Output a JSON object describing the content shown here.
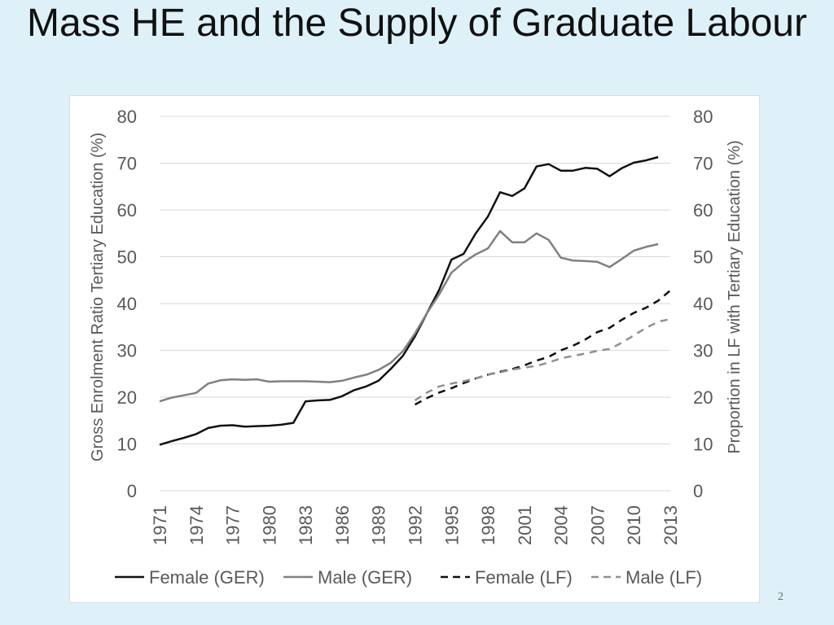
{
  "slide": {
    "title": "Mass HE and the Supply of Graduate Labour",
    "page_number": "2"
  },
  "chart_data": {
    "type": "line",
    "ylabel_left": "Gross Enrolment Ratio Tertiary Education (%)",
    "ylabel_right": "Proportion in LF with Tertiary Education (%)",
    "ylim": [
      0,
      80
    ],
    "yticks": [
      0,
      10,
      20,
      30,
      40,
      50,
      60,
      70,
      80
    ],
    "xlim": [
      1971,
      2013
    ],
    "xticks": [
      1971,
      1974,
      1977,
      1980,
      1983,
      1986,
      1989,
      1992,
      1995,
      1998,
      2001,
      2004,
      2007,
      2010,
      2013
    ],
    "grid": true,
    "legend_position": "bottom",
    "series": [
      {
        "name": "Female (GER)",
        "color": "#111111",
        "dash": "solid",
        "x": [
          1971,
          1972,
          1973,
          1974,
          1975,
          1976,
          1977,
          1978,
          1979,
          1980,
          1981,
          1982,
          1983,
          1984,
          1985,
          1986,
          1987,
          1988,
          1989,
          1990,
          1991,
          1992,
          1993,
          1994,
          1995,
          1996,
          1997,
          1998,
          1999,
          2000,
          2001,
          2002,
          2003,
          2004,
          2005,
          2006,
          2007,
          2008,
          2009,
          2010,
          2011,
          2012
        ],
        "values": [
          9.8,
          10.6,
          11.3,
          12.1,
          13.4,
          13.9,
          14.0,
          13.7,
          13.8,
          13.9,
          14.1,
          14.5,
          19.1,
          19.3,
          19.4,
          20.2,
          21.5,
          22.3,
          23.5,
          26.0,
          28.8,
          33.0,
          38.0,
          43.0,
          49.4,
          50.6,
          55.0,
          58.6,
          63.8,
          63.0,
          64.6,
          69.3,
          69.8,
          68.4,
          68.4,
          69.0,
          68.8,
          67.2,
          68.9,
          70.1,
          70.6,
          71.3
        ]
      },
      {
        "name": "Male (GER)",
        "color": "#808080",
        "dash": "solid",
        "x": [
          1971,
          1972,
          1973,
          1974,
          1975,
          1976,
          1977,
          1978,
          1979,
          1980,
          1981,
          1982,
          1983,
          1984,
          1985,
          1986,
          1987,
          1988,
          1989,
          1990,
          1991,
          1992,
          1993,
          1994,
          1995,
          1996,
          1997,
          1998,
          1999,
          2000,
          2001,
          2002,
          2003,
          2004,
          2005,
          2006,
          2007,
          2008,
          2009,
          2010,
          2011,
          2012
        ],
        "values": [
          19.1,
          19.9,
          20.4,
          20.9,
          22.9,
          23.6,
          23.8,
          23.7,
          23.8,
          23.3,
          23.4,
          23.4,
          23.4,
          23.3,
          23.2,
          23.5,
          24.2,
          24.8,
          25.8,
          27.3,
          29.8,
          33.6,
          38.0,
          42.0,
          46.6,
          48.8,
          50.5,
          51.8,
          55.5,
          53.1,
          53.1,
          55.0,
          53.6,
          49.8,
          49.2,
          49.1,
          48.9,
          47.8,
          49.5,
          51.3,
          52.1,
          52.7
        ]
      },
      {
        "name": "Female (LF)",
        "color": "#111111",
        "dash": "long-dash",
        "x": [
          1992,
          1993,
          1994,
          1995,
          1996,
          1997,
          1998,
          1999,
          2000,
          2001,
          2002,
          2003,
          2004,
          2005,
          2006,
          2007,
          2008,
          2009,
          2010,
          2011,
          2012,
          2013
        ],
        "values": [
          18.4,
          19.8,
          21.0,
          21.9,
          23.0,
          24.0,
          24.8,
          25.4,
          26.0,
          26.8,
          27.8,
          28.6,
          30.0,
          31.0,
          32.3,
          33.9,
          34.8,
          36.5,
          38.0,
          39.1,
          40.6,
          42.8
        ]
      },
      {
        "name": "Male (LF)",
        "color": "#909090",
        "dash": "long-dash",
        "x": [
          1992,
          1993,
          1994,
          1995,
          1996,
          1997,
          1998,
          1999,
          2000,
          2001,
          2002,
          2003,
          2004,
          2005,
          2006,
          2007,
          2008,
          2009,
          2010,
          2011,
          2012,
          2013
        ],
        "values": [
          19.3,
          21.0,
          22.3,
          22.9,
          23.4,
          24.0,
          24.8,
          25.3,
          25.9,
          26.3,
          26.7,
          27.4,
          28.3,
          28.8,
          29.3,
          29.9,
          30.3,
          31.6,
          33.2,
          34.8,
          36.1,
          36.7
        ]
      }
    ]
  }
}
